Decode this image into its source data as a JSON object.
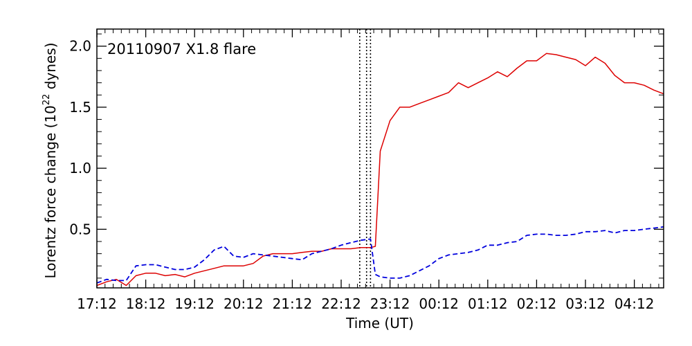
{
  "chart_data": {
    "type": "line",
    "annotation": "20110907 X1.8 flare",
    "xlabel": "Time (UT)",
    "ylabel_prefix": "Lorentz force change (10",
    "ylabel_exp": "22",
    "ylabel_suffix": " dynes)",
    "x_tick_labels": [
      "17:12",
      "18:12",
      "19:12",
      "20:12",
      "21:12",
      "22:12",
      "23:12",
      "00:12",
      "01:12",
      "02:12",
      "03:12",
      "04:12"
    ],
    "x_range_hours": [
      17.2,
      28.8
    ],
    "y_ticks": [
      0.5,
      1.0,
      1.5,
      2.0
    ],
    "y_tick_labels": [
      "0.5",
      "1.0",
      "1.5",
      "2.0"
    ],
    "ylim": [
      0.02,
      2.14
    ],
    "grid": false,
    "vertical_markers_hours": [
      22.58,
      22.72,
      22.8
    ],
    "series": [
      {
        "style": "solid",
        "color": "#dd0000",
        "x_hours": [
          17.2,
          17.4,
          17.6,
          17.8,
          18.0,
          18.2,
          18.4,
          18.6,
          18.8,
          19.0,
          19.2,
          19.4,
          19.6,
          19.8,
          20.0,
          20.2,
          20.4,
          20.6,
          20.8,
          21.0,
          21.2,
          21.4,
          21.6,
          21.8,
          22.0,
          22.2,
          22.4,
          22.6,
          22.8,
          22.9,
          23.0,
          23.2,
          23.4,
          23.6,
          23.8,
          24.0,
          24.2,
          24.4,
          24.6,
          24.8,
          25.0,
          25.2,
          25.4,
          25.6,
          25.8,
          26.0,
          26.2,
          26.4,
          26.6,
          26.8,
          27.0,
          27.2,
          27.4,
          27.6,
          27.8,
          28.0,
          28.2,
          28.4,
          28.6,
          28.8
        ],
        "values": [
          0.04,
          0.07,
          0.09,
          0.04,
          0.12,
          0.14,
          0.14,
          0.12,
          0.13,
          0.11,
          0.14,
          0.16,
          0.18,
          0.2,
          0.2,
          0.2,
          0.22,
          0.28,
          0.3,
          0.3,
          0.3,
          0.31,
          0.32,
          0.32,
          0.34,
          0.34,
          0.34,
          0.35,
          0.35,
          0.36,
          1.14,
          1.39,
          1.5,
          1.5,
          1.53,
          1.56,
          1.59,
          1.62,
          1.7,
          1.66,
          1.7,
          1.74,
          1.79,
          1.75,
          1.82,
          1.88,
          1.88,
          1.94,
          1.93,
          1.91,
          1.89,
          1.84,
          1.91,
          1.86,
          1.76,
          1.7,
          1.7,
          1.68,
          1.64,
          1.61
        ]
      },
      {
        "style": "dashed",
        "color": "#0000dd",
        "x_hours": [
          17.2,
          17.4,
          17.6,
          17.8,
          18.0,
          18.2,
          18.4,
          18.6,
          18.8,
          19.0,
          19.2,
          19.4,
          19.6,
          19.8,
          20.0,
          20.2,
          20.4,
          20.6,
          20.8,
          21.0,
          21.2,
          21.4,
          21.6,
          21.8,
          22.0,
          22.2,
          22.4,
          22.6,
          22.8,
          22.9,
          23.0,
          23.2,
          23.4,
          23.6,
          23.8,
          24.0,
          24.2,
          24.4,
          24.6,
          24.8,
          25.0,
          25.2,
          25.4,
          25.6,
          25.8,
          26.0,
          26.2,
          26.4,
          26.6,
          26.8,
          27.0,
          27.2,
          27.4,
          27.6,
          27.8,
          28.0,
          28.2,
          28.4,
          28.6,
          28.8
        ],
        "values": [
          0.06,
          0.09,
          0.08,
          0.08,
          0.2,
          0.21,
          0.21,
          0.19,
          0.17,
          0.17,
          0.19,
          0.25,
          0.33,
          0.36,
          0.28,
          0.27,
          0.3,
          0.29,
          0.28,
          0.27,
          0.26,
          0.25,
          0.3,
          0.32,
          0.34,
          0.37,
          0.39,
          0.41,
          0.42,
          0.13,
          0.11,
          0.1,
          0.1,
          0.12,
          0.16,
          0.2,
          0.26,
          0.29,
          0.3,
          0.31,
          0.33,
          0.37,
          0.37,
          0.39,
          0.4,
          0.45,
          0.46,
          0.46,
          0.45,
          0.45,
          0.46,
          0.48,
          0.48,
          0.49,
          0.47,
          0.49,
          0.49,
          0.5,
          0.51,
          0.52
        ]
      }
    ]
  }
}
